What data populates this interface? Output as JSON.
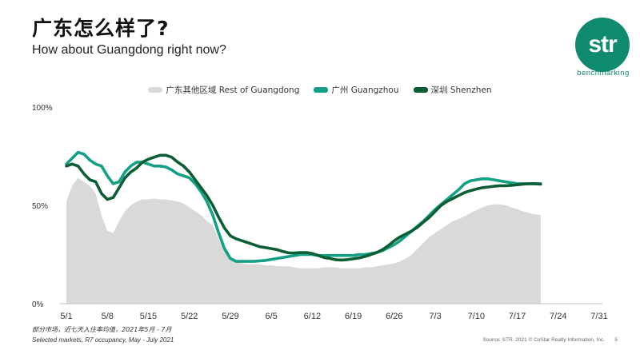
{
  "header": {
    "title": "广东怎么样了?",
    "subtitle": "How about Guangdong right now?"
  },
  "logo": {
    "text": "str",
    "tagline": "benchmarking",
    "color": "#0e8a6e"
  },
  "footer": {
    "note_cn": "部分市场，近七天入住率均值，2021年5月 - 7月",
    "note_en": "Selected markets, R7 occupancy, May - July 2021",
    "source": "Source: STR. 2021 © CoStar Realty Information, Inc.",
    "page": "5"
  },
  "chart_data": {
    "type": "line",
    "x_ticks": [
      "5/1",
      "5/8",
      "5/15",
      "5/22",
      "5/29",
      "6/5",
      "6/12",
      "6/19",
      "6/26",
      "7/3",
      "7/10",
      "7/17",
      "7/24",
      "7/31"
    ],
    "y_ticks": [
      "0%",
      "50%",
      "100%"
    ],
    "ylim": [
      0,
      100
    ],
    "legend_position": "top",
    "grid": false,
    "series": [
      {
        "name": "广东其他区域 Rest of Guangdong",
        "type": "area",
        "color": "#d9d9d9",
        "points": [
          [
            0,
            52
          ],
          [
            1,
            60
          ],
          [
            2,
            64
          ],
          [
            3,
            62
          ],
          [
            4,
            60
          ],
          [
            5,
            56
          ],
          [
            6,
            45
          ],
          [
            7,
            37
          ],
          [
            8,
            36
          ],
          [
            9,
            42
          ],
          [
            10,
            47
          ],
          [
            11,
            50
          ],
          [
            12,
            52
          ],
          [
            13,
            53
          ],
          [
            14,
            53
          ],
          [
            15,
            53.5
          ],
          [
            16,
            53
          ],
          [
            17,
            53
          ],
          [
            18,
            52.5
          ],
          [
            19,
            52
          ],
          [
            20,
            51
          ],
          [
            21,
            49
          ],
          [
            22,
            47
          ],
          [
            23,
            45
          ],
          [
            24,
            42
          ],
          [
            25,
            40
          ],
          [
            26,
            33
          ],
          [
            27,
            27
          ],
          [
            28,
            23
          ],
          [
            29,
            21
          ],
          [
            30,
            20.5
          ],
          [
            31,
            20
          ],
          [
            32,
            20
          ],
          [
            33,
            20
          ],
          [
            34,
            19.5
          ],
          [
            35,
            19.5
          ],
          [
            36,
            19
          ],
          [
            37,
            19
          ],
          [
            38,
            19
          ],
          [
            39,
            18.5
          ],
          [
            40,
            18
          ],
          [
            41,
            18
          ],
          [
            42,
            18
          ],
          [
            43,
            18
          ],
          [
            44,
            18.5
          ],
          [
            45,
            18.5
          ],
          [
            46,
            18.5
          ],
          [
            47,
            18
          ],
          [
            48,
            18
          ],
          [
            49,
            18
          ],
          [
            50,
            18
          ],
          [
            51,
            18.5
          ],
          [
            52,
            18.5
          ],
          [
            53,
            19
          ],
          [
            54,
            19.5
          ],
          [
            55,
            20
          ],
          [
            56,
            20.5
          ],
          [
            57,
            21.5
          ],
          [
            58,
            23
          ],
          [
            59,
            25
          ],
          [
            60,
            28
          ],
          [
            61,
            31
          ],
          [
            62,
            34
          ],
          [
            63,
            36
          ],
          [
            64,
            38
          ],
          [
            65,
            40
          ],
          [
            66,
            42
          ],
          [
            67,
            43
          ],
          [
            68,
            44.5
          ],
          [
            69,
            46
          ],
          [
            70,
            47.5
          ],
          [
            71,
            49
          ],
          [
            72,
            50
          ],
          [
            73,
            50.5
          ],
          [
            74,
            50.5
          ],
          [
            75,
            50
          ],
          [
            76,
            49
          ],
          [
            77,
            48
          ],
          [
            78,
            47
          ],
          [
            79,
            46
          ],
          [
            80,
            45.5
          ],
          [
            81,
            45
          ]
        ]
      },
      {
        "name": "广州 Guangzhou",
        "type": "line",
        "color": "#14a085",
        "points": [
          [
            0,
            71
          ],
          [
            1,
            74
          ],
          [
            2,
            77
          ],
          [
            3,
            76
          ],
          [
            4,
            73
          ],
          [
            5,
            71
          ],
          [
            6,
            70
          ],
          [
            7,
            65
          ],
          [
            8,
            61
          ],
          [
            9,
            62
          ],
          [
            10,
            67
          ],
          [
            11,
            70
          ],
          [
            12,
            72
          ],
          [
            13,
            72
          ],
          [
            14,
            71
          ],
          [
            15,
            70
          ],
          [
            16,
            70
          ],
          [
            17,
            69.5
          ],
          [
            18,
            68
          ],
          [
            19,
            66
          ],
          [
            20,
            65
          ],
          [
            21,
            64
          ],
          [
            22,
            61
          ],
          [
            23,
            57
          ],
          [
            24,
            52
          ],
          [
            25,
            45
          ],
          [
            26,
            36
          ],
          [
            27,
            28
          ],
          [
            28,
            23
          ],
          [
            29,
            21.5
          ],
          [
            30,
            21.5
          ],
          [
            31,
            21.5
          ],
          [
            32,
            21.5
          ],
          [
            33,
            21.8
          ],
          [
            34,
            22
          ],
          [
            35,
            22.5
          ],
          [
            36,
            23
          ],
          [
            37,
            23.5
          ],
          [
            38,
            24
          ],
          [
            39,
            24.5
          ],
          [
            40,
            25
          ],
          [
            41,
            25
          ],
          [
            42,
            25
          ],
          [
            43,
            24.5
          ],
          [
            44,
            24.5
          ],
          [
            45,
            24.5
          ],
          [
            46,
            24.5
          ],
          [
            47,
            24.5
          ],
          [
            48,
            24.5
          ],
          [
            49,
            24.5
          ],
          [
            50,
            25
          ],
          [
            51,
            25
          ],
          [
            52,
            25.5
          ],
          [
            53,
            26
          ],
          [
            54,
            27
          ],
          [
            55,
            28.5
          ],
          [
            56,
            30
          ],
          [
            57,
            32
          ],
          [
            58,
            34.5
          ],
          [
            59,
            37
          ],
          [
            60,
            39.5
          ],
          [
            61,
            42
          ],
          [
            62,
            45
          ],
          [
            63,
            48
          ],
          [
            64,
            50.5
          ],
          [
            65,
            53
          ],
          [
            66,
            55.5
          ],
          [
            67,
            58
          ],
          [
            68,
            61
          ],
          [
            69,
            62.5
          ],
          [
            70,
            63
          ],
          [
            71,
            63.5
          ],
          [
            72,
            63.5
          ],
          [
            73,
            63
          ],
          [
            74,
            62.5
          ],
          [
            75,
            62
          ],
          [
            76,
            61.5
          ],
          [
            77,
            61
          ],
          [
            78,
            61
          ],
          [
            79,
            61
          ],
          [
            80,
            61
          ],
          [
            81,
            61
          ]
        ]
      },
      {
        "name": "深圳 Shenzhen",
        "type": "line",
        "color": "#0b5e34",
        "points": [
          [
            0,
            70
          ],
          [
            1,
            71
          ],
          [
            2,
            70
          ],
          [
            3,
            66
          ],
          [
            4,
            63
          ],
          [
            5,
            62
          ],
          [
            6,
            56
          ],
          [
            7,
            53
          ],
          [
            8,
            54
          ],
          [
            9,
            59
          ],
          [
            10,
            64
          ],
          [
            11,
            67
          ],
          [
            12,
            69
          ],
          [
            13,
            72
          ],
          [
            14,
            73.5
          ],
          [
            15,
            74.5
          ],
          [
            16,
            75.5
          ],
          [
            17,
            75.5
          ],
          [
            18,
            74.5
          ],
          [
            19,
            72
          ],
          [
            20,
            70
          ],
          [
            21,
            67
          ],
          [
            22,
            63
          ],
          [
            23,
            59
          ],
          [
            24,
            55
          ],
          [
            25,
            50
          ],
          [
            26,
            44
          ],
          [
            27,
            38.5
          ],
          [
            28,
            34.5
          ],
          [
            29,
            33
          ],
          [
            30,
            32
          ],
          [
            31,
            31
          ],
          [
            32,
            30
          ],
          [
            33,
            29
          ],
          [
            34,
            28.5
          ],
          [
            35,
            28
          ],
          [
            36,
            27.5
          ],
          [
            37,
            26.5
          ],
          [
            38,
            25.8
          ],
          [
            39,
            25.8
          ],
          [
            40,
            26
          ],
          [
            41,
            26
          ],
          [
            42,
            25.5
          ],
          [
            43,
            24.5
          ],
          [
            44,
            23.5
          ],
          [
            45,
            23
          ],
          [
            46,
            22.3
          ],
          [
            47,
            22.2
          ],
          [
            48,
            22.4
          ],
          [
            49,
            22.8
          ],
          [
            50,
            23.3
          ],
          [
            51,
            24
          ],
          [
            52,
            25
          ],
          [
            53,
            26
          ],
          [
            54,
            27.5
          ],
          [
            55,
            29.5
          ],
          [
            56,
            32
          ],
          [
            57,
            34
          ],
          [
            58,
            35.5
          ],
          [
            59,
            37
          ],
          [
            60,
            39
          ],
          [
            61,
            41.5
          ],
          [
            62,
            44
          ],
          [
            63,
            47
          ],
          [
            64,
            50
          ],
          [
            65,
            52
          ],
          [
            66,
            53.5
          ],
          [
            67,
            55
          ],
          [
            68,
            56.5
          ],
          [
            69,
            57.5
          ],
          [
            70,
            58.3
          ],
          [
            71,
            59
          ],
          [
            72,
            59.3
          ],
          [
            73,
            59.7
          ],
          [
            74,
            60
          ],
          [
            75,
            60
          ],
          [
            76,
            60.2
          ],
          [
            77,
            60.5
          ],
          [
            78,
            60.8
          ],
          [
            79,
            61
          ],
          [
            80,
            61
          ],
          [
            81,
            60.8
          ]
        ]
      }
    ]
  }
}
